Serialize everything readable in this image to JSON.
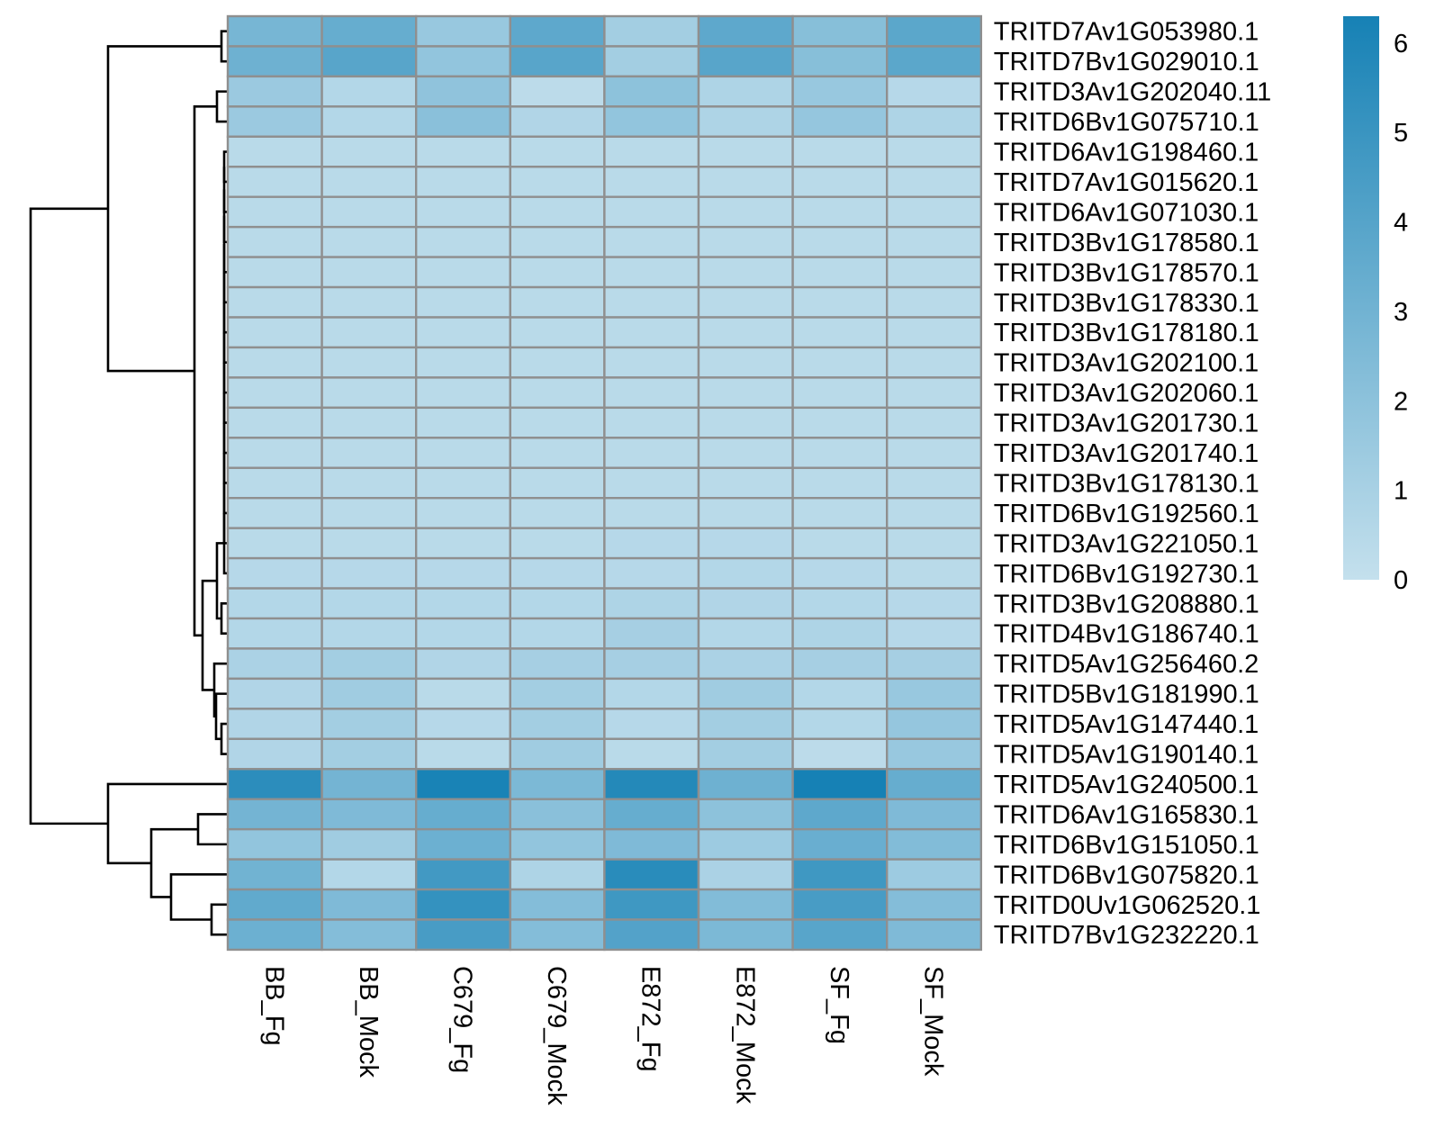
{
  "chart_data": {
    "type": "heatmap",
    "rows": [
      "TRITD7Av1G053980.1",
      "TRITD7Bv1G029010.1",
      "TRITD3Av1G202040.11",
      "TRITD6Bv1G075710.1",
      "TRITD6Av1G198460.1",
      "TRITD7Av1G015620.1",
      "TRITD6Av1G071030.1",
      "TRITD3Bv1G178580.1",
      "TRITD3Bv1G178570.1",
      "TRITD3Bv1G178330.1",
      "TRITD3Bv1G178180.1",
      "TRITD3Av1G202100.1",
      "TRITD3Av1G202060.1",
      "TRITD3Av1G201730.1",
      "TRITD3Av1G201740.1",
      "TRITD3Bv1G178130.1",
      "TRITD6Bv1G192560.1",
      "TRITD3Av1G221050.1",
      "TRITD6Bv1G192730.1",
      "TRITD3Bv1G208880.1",
      "TRITD4Bv1G186740.1",
      "TRITD5Av1G256460.2",
      "TRITD5Bv1G181990.1",
      "TRITD5Av1G147440.1",
      "TRITD5Av1G190140.1",
      "TRITD5Av1G240500.1",
      "TRITD6Av1G165830.1",
      "TRITD6Bv1G151050.1",
      "TRITD6Bv1G075820.1",
      "TRITD0Uv1G062520.1",
      "TRITD7Bv1G232220.1"
    ],
    "columns": [
      "BB_Fg",
      "BB_Mock",
      "C679_Fg",
      "C679_Mock",
      "E872_Fg",
      "E872_Mock",
      "SF_Fg",
      "SF_Mock"
    ],
    "values": [
      [
        2.8,
        3.4,
        1.6,
        3.7,
        1.2,
        3.7,
        2.2,
        3.8
      ],
      [
        3.1,
        3.9,
        1.8,
        3.9,
        1.2,
        3.9,
        2.2,
        3.8
      ],
      [
        1.5,
        0.6,
        1.9,
        0.3,
        2.0,
        0.8,
        1.6,
        0.5
      ],
      [
        1.5,
        0.6,
        2.1,
        0.7,
        1.8,
        0.8,
        1.7,
        0.8
      ],
      [
        0.4,
        0.4,
        0.4,
        0.4,
        0.4,
        0.4,
        0.4,
        0.4
      ],
      [
        0.4,
        0.4,
        0.4,
        0.4,
        0.4,
        0.4,
        0.4,
        0.4
      ],
      [
        0.4,
        0.4,
        0.4,
        0.4,
        0.4,
        0.4,
        0.4,
        0.4
      ],
      [
        0.4,
        0.4,
        0.4,
        0.4,
        0.4,
        0.4,
        0.4,
        0.4
      ],
      [
        0.4,
        0.4,
        0.4,
        0.4,
        0.4,
        0.4,
        0.4,
        0.4
      ],
      [
        0.4,
        0.4,
        0.4,
        0.4,
        0.4,
        0.4,
        0.4,
        0.4
      ],
      [
        0.4,
        0.4,
        0.4,
        0.4,
        0.4,
        0.4,
        0.4,
        0.4
      ],
      [
        0.4,
        0.4,
        0.4,
        0.4,
        0.4,
        0.4,
        0.4,
        0.4
      ],
      [
        0.4,
        0.4,
        0.4,
        0.4,
        0.4,
        0.4,
        0.4,
        0.4
      ],
      [
        0.4,
        0.4,
        0.4,
        0.4,
        0.4,
        0.4,
        0.4,
        0.4
      ],
      [
        0.4,
        0.4,
        0.4,
        0.4,
        0.4,
        0.4,
        0.4,
        0.4
      ],
      [
        0.4,
        0.4,
        0.4,
        0.4,
        0.4,
        0.4,
        0.4,
        0.4
      ],
      [
        0.4,
        0.4,
        0.4,
        0.4,
        0.4,
        0.4,
        0.4,
        0.4
      ],
      [
        0.4,
        0.4,
        0.4,
        0.4,
        0.5,
        0.5,
        0.4,
        0.4
      ],
      [
        0.5,
        0.5,
        0.5,
        0.5,
        0.5,
        0.6,
        0.5,
        0.4
      ],
      [
        0.6,
        0.6,
        0.6,
        0.6,
        0.8,
        0.7,
        0.6,
        0.5
      ],
      [
        0.6,
        0.6,
        0.6,
        0.6,
        1.1,
        0.6,
        0.8,
        0.5
      ],
      [
        0.9,
        1.2,
        0.7,
        1.1,
        1.1,
        0.9,
        1.1,
        1.1
      ],
      [
        0.7,
        1.3,
        0.4,
        1.2,
        0.6,
        1.3,
        0.6,
        1.6
      ],
      [
        0.7,
        1.2,
        0.5,
        1.2,
        0.5,
        1.2,
        0.6,
        1.7
      ],
      [
        0.7,
        1.2,
        0.4,
        1.3,
        0.4,
        1.2,
        0.3,
        1.6
      ],
      [
        5.5,
        2.9,
        6.2,
        2.6,
        5.8,
        3.1,
        6.3,
        3.4
      ],
      [
        2.9,
        2.5,
        3.4,
        2.1,
        3.4,
        2.0,
        3.7,
        2.5
      ],
      [
        1.8,
        1.3,
        3.2,
        1.8,
        2.5,
        1.4,
        3.3,
        2.4
      ],
      [
        3.0,
        0.6,
        4.7,
        0.8,
        5.6,
        0.9,
        4.8,
        1.4
      ],
      [
        3.6,
        2.5,
        5.2,
        2.3,
        4.8,
        2.4,
        4.5,
        2.3
      ],
      [
        3.2,
        2.3,
        4.5,
        2.3,
        4.1,
        2.6,
        3.9,
        2.5
      ]
    ],
    "color_scale": {
      "min": 0,
      "max": 6.3,
      "low_color": "#c4e0ed",
      "high_color": "#1681b5",
      "ticks": [
        0,
        1,
        2,
        3,
        4,
        5,
        6
      ]
    },
    "cell_border_color": "#8f8f8f",
    "row_dendrogram": "left",
    "legend": "right"
  }
}
